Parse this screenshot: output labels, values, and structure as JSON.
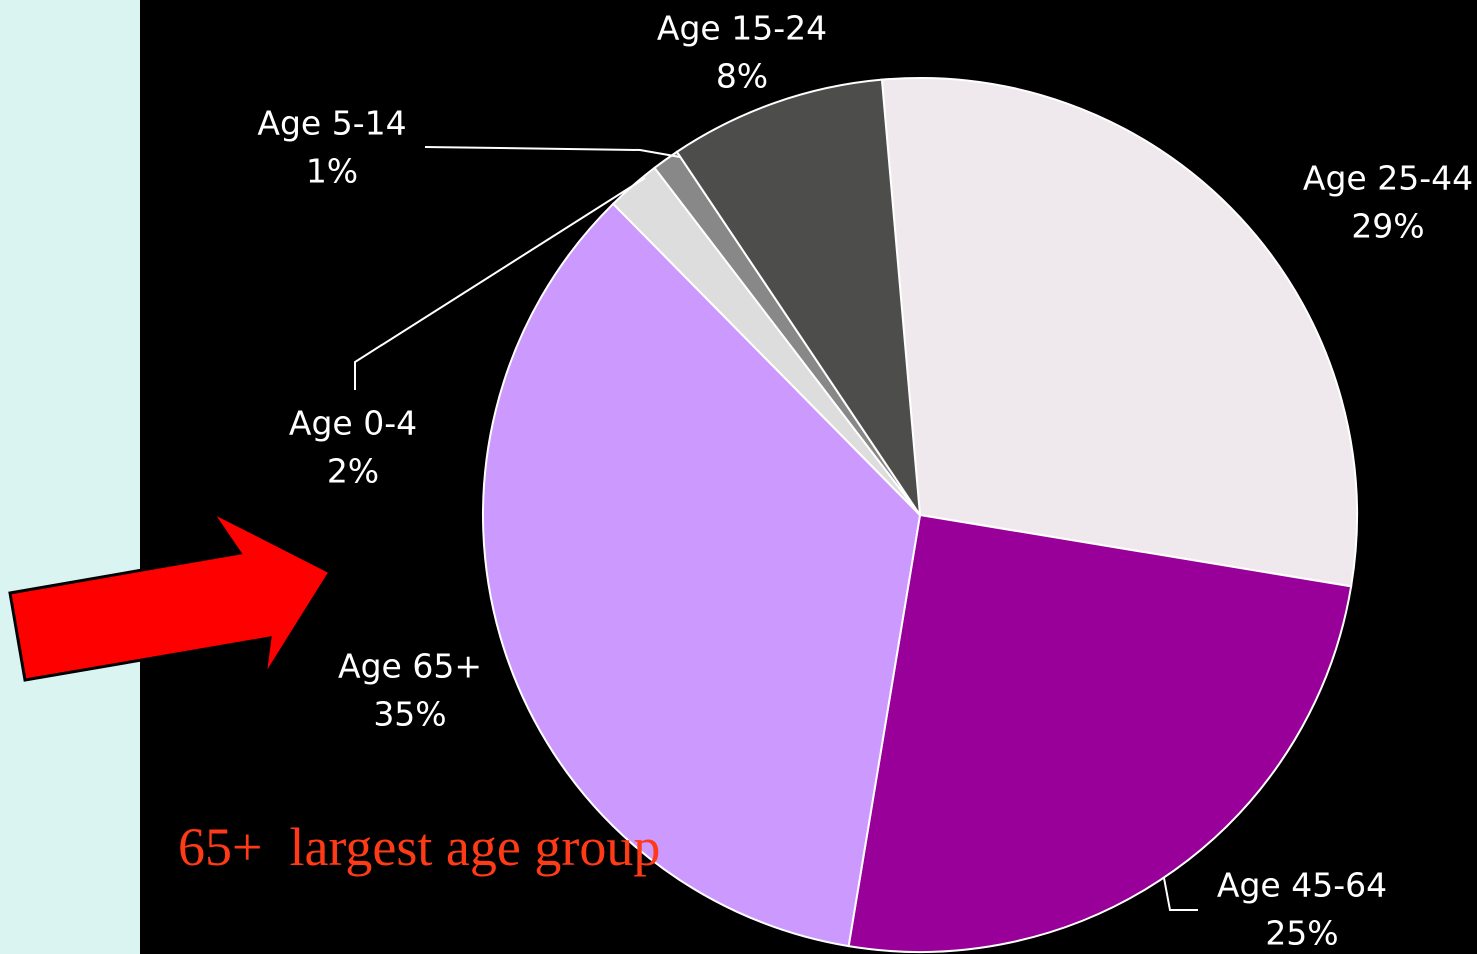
{
  "chart_data": {
    "type": "pie",
    "categories": [
      "Age 25-44",
      "Age 45-64",
      "Age 65+",
      "Age 0-4",
      "Age 5-14",
      "Age 15-24"
    ],
    "values": [
      29,
      25,
      35,
      2,
      1,
      8
    ],
    "value_labels": [
      "29%",
      "25%",
      "35%",
      "2%",
      "1%",
      "8%"
    ],
    "colors": [
      "#efe9ee",
      "#990099",
      "#cc99ff",
      "#dddddd",
      "#888888",
      "#4d4d4b"
    ],
    "annotation": "65+  largest age group"
  }
}
